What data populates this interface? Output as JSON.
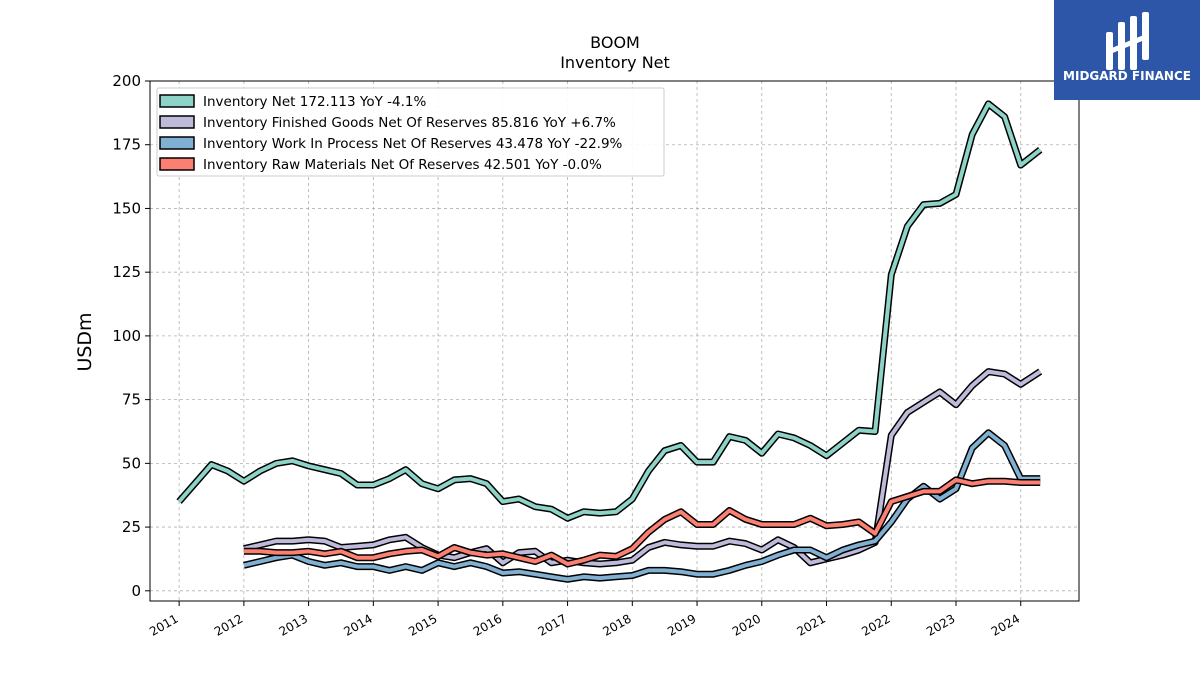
{
  "logo": {
    "text": "MIDGARD FINANCE",
    "bg_color": "#2d56a8"
  },
  "chart_data": {
    "type": "line",
    "title": "BOOM",
    "subtitle": "Inventory Net",
    "xlabel": "",
    "ylabel": "USDm",
    "xlim": [
      2010.55,
      2024.9
    ],
    "ylim": [
      -4,
      200
    ],
    "yticks": [
      0,
      25,
      50,
      75,
      100,
      125,
      150,
      175,
      200
    ],
    "xticks": [
      2011,
      2012,
      2013,
      2014,
      2015,
      2016,
      2017,
      2018,
      2019,
      2020,
      2021,
      2022,
      2023,
      2024
    ],
    "grid": true,
    "legend_position": "top-left",
    "series": [
      {
        "name": "Inventory Net",
        "legend": "Inventory Net  172.113 YoY -4.1%",
        "color": "#8dd3c7",
        "x": [
          2011.0,
          2011.5,
          2011.75,
          2012.0,
          2012.25,
          2012.5,
          2012.75,
          2013.0,
          2013.25,
          2013.5,
          2013.75,
          2014.0,
          2014.25,
          2014.5,
          2014.75,
          2015.0,
          2015.25,
          2015.5,
          2015.75,
          2016.0,
          2016.25,
          2016.5,
          2016.75,
          2017.0,
          2017.25,
          2017.5,
          2017.75,
          2018.0,
          2018.25,
          2018.5,
          2018.75,
          2019.0,
          2019.25,
          2019.5,
          2019.75,
          2020.0,
          2020.25,
          2020.5,
          2020.75,
          2021.0,
          2021.25,
          2021.5,
          2021.75,
          2022.0,
          2022.25,
          2022.5,
          2022.75,
          2023.0,
          2023.25,
          2023.5,
          2023.75,
          2024.0,
          2024.3
        ],
        "values": [
          35,
          49.5,
          47,
          43,
          47,
          50,
          51,
          49,
          47.5,
          46,
          41.5,
          41.5,
          44,
          47.5,
          42,
          40,
          43.5,
          44,
          42,
          35,
          36,
          33,
          32,
          28.5,
          31,
          30.5,
          31,
          36,
          47,
          55,
          57,
          50.5,
          50.5,
          60.5,
          59,
          54,
          61.5,
          60,
          57,
          53,
          58,
          63,
          62.5,
          124,
          143,
          151.5,
          152,
          155.5,
          179,
          191,
          186,
          167,
          173
        ]
      },
      {
        "name": "Inventory Finished Goods Net Of Reserves",
        "legend": "Inventory Finished Goods Net Of Reserves  85.816 YoY +6.7%",
        "color": "#bebada",
        "x": [
          2012.0,
          2012.25,
          2012.5,
          2012.75,
          2013.0,
          2013.25,
          2013.5,
          2013.75,
          2014.0,
          2014.25,
          2014.5,
          2014.75,
          2015.0,
          2015.25,
          2015.5,
          2015.75,
          2016.0,
          2016.25,
          2016.5,
          2016.75,
          2017.0,
          2017.25,
          2017.5,
          2017.75,
          2018.0,
          2018.25,
          2018.5,
          2018.75,
          2019.0,
          2019.25,
          2019.5,
          2019.75,
          2020.0,
          2020.25,
          2020.5,
          2020.75,
          2021.0,
          2021.25,
          2021.5,
          2021.75,
          2022.0,
          2022.25,
          2022.5,
          2022.75,
          2023.0,
          2023.25,
          2023.5,
          2023.75,
          2024.0,
          2024.3
        ],
        "values": [
          16.5,
          18,
          19.5,
          19.5,
          20,
          19.5,
          17,
          17.5,
          18,
          20,
          21,
          17,
          14,
          13,
          15,
          16.5,
          11,
          15,
          15.5,
          11,
          12,
          11,
          10.5,
          11,
          12,
          17,
          19,
          18,
          17.5,
          17.5,
          19.5,
          18.5,
          16,
          20,
          17,
          11,
          12.5,
          14,
          16,
          19,
          61,
          70,
          74,
          78,
          73,
          80.5,
          86,
          85,
          81,
          86
        ]
      },
      {
        "name": "Inventory Work In Process Net Of Reserves",
        "legend": "Inventory Work In Process Net Of Reserves  43.478 YoY -22.9%",
        "color": "#80b1d3",
        "x": [
          2012.0,
          2012.25,
          2012.5,
          2012.75,
          2013.0,
          2013.25,
          2013.5,
          2013.75,
          2014.0,
          2014.25,
          2014.5,
          2014.75,
          2015.0,
          2015.25,
          2015.5,
          2015.75,
          2016.0,
          2016.25,
          2016.5,
          2016.75,
          2017.0,
          2017.25,
          2017.5,
          2017.75,
          2018.0,
          2018.25,
          2018.5,
          2018.75,
          2019.0,
          2019.25,
          2019.5,
          2019.75,
          2020.0,
          2020.25,
          2020.5,
          2020.75,
          2021.0,
          2021.25,
          2021.5,
          2021.75,
          2022.0,
          2022.25,
          2022.5,
          2022.75,
          2023.0,
          2023.25,
          2023.5,
          2023.75,
          2024.0,
          2024.3
        ],
        "values": [
          10,
          11.5,
          13,
          14,
          11.5,
          10,
          11,
          9.5,
          9.5,
          8,
          9.5,
          8,
          11,
          9.5,
          11,
          9.5,
          7,
          7.5,
          6.5,
          5.5,
          4.5,
          5.5,
          5,
          5.5,
          6,
          8,
          8,
          7.5,
          6.5,
          6.5,
          8,
          10,
          11.5,
          14,
          16,
          16,
          13,
          16,
          18,
          19.5,
          27,
          36,
          41,
          36,
          40,
          56,
          62,
          57,
          44,
          44
        ]
      },
      {
        "name": "Inventory Raw Materials Net Of Reserves",
        "legend": "Inventory Raw Materials Net Of Reserves  42.501 YoY -0.0%",
        "color": "#fb8072",
        "x": [
          2012.0,
          2012.25,
          2012.5,
          2012.75,
          2013.0,
          2013.25,
          2013.5,
          2013.75,
          2014.0,
          2014.25,
          2014.5,
          2014.75,
          2015.0,
          2015.25,
          2015.5,
          2015.75,
          2016.0,
          2016.25,
          2016.5,
          2016.75,
          2017.0,
          2017.25,
          2017.5,
          2017.75,
          2018.0,
          2018.25,
          2018.5,
          2018.75,
          2019.0,
          2019.25,
          2019.5,
          2019.75,
          2020.0,
          2020.25,
          2020.5,
          2020.75,
          2021.0,
          2021.25,
          2021.5,
          2021.75,
          2022.0,
          2022.25,
          2022.5,
          2022.75,
          2023.0,
          2023.25,
          2023.5,
          2023.75,
          2024.0,
          2024.3
        ],
        "values": [
          15.5,
          15.5,
          15,
          15,
          15.5,
          14.5,
          15.5,
          13,
          13,
          14.5,
          15.5,
          16,
          13.5,
          17,
          15,
          14,
          14.5,
          13,
          11.5,
          14,
          10.5,
          12,
          14,
          13.5,
          16.5,
          23,
          28,
          31,
          26,
          26,
          31.5,
          28,
          26,
          26,
          26,
          28.5,
          25.5,
          26,
          27,
          22.5,
          35,
          37,
          39,
          39,
          43.5,
          42,
          43,
          43,
          42.5,
          42.5
        ]
      }
    ]
  }
}
